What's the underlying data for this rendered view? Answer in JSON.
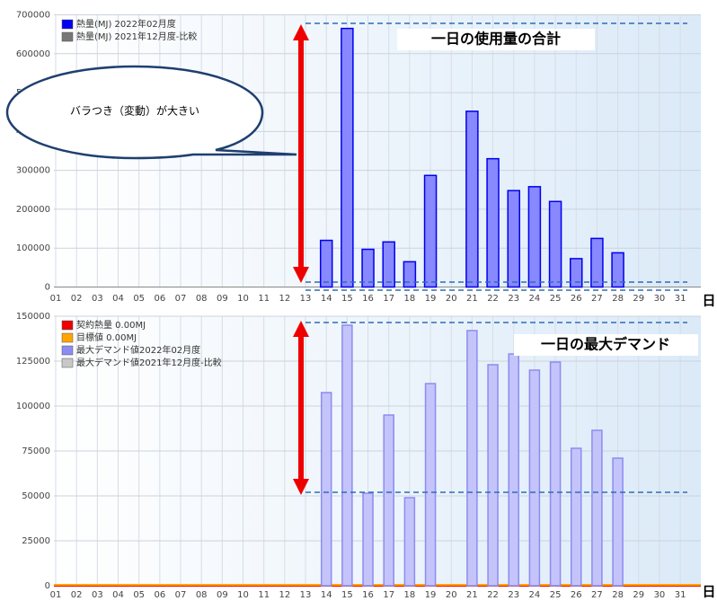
{
  "chart_data": [
    {
      "type": "bar",
      "title": "一日の使用量の合計",
      "callout": "バラつき（変動）が大きい",
      "x_label": "日",
      "categories": [
        "01",
        "02",
        "03",
        "04",
        "05",
        "06",
        "07",
        "08",
        "09",
        "10",
        "11",
        "12",
        "13",
        "14",
        "15",
        "16",
        "17",
        "18",
        "19",
        "20",
        "21",
        "22",
        "23",
        "24",
        "25",
        "26",
        "27",
        "28",
        "29",
        "30",
        "31"
      ],
      "series": [
        {
          "name": "熱量(MJ) 2022年02月度",
          "color": "#0000ee",
          "values": [
            null,
            null,
            null,
            null,
            null,
            null,
            null,
            null,
            null,
            null,
            null,
            null,
            null,
            120000,
            665000,
            97000,
            116000,
            65000,
            287000,
            null,
            452000,
            330000,
            248000,
            258000,
            220000,
            73000,
            125000,
            88000,
            null,
            null,
            null
          ]
        },
        {
          "name": "熱量(MJ) 2021年12月度-比較",
          "color": "#777777"
        }
      ],
      "ylim": [
        0,
        700000
      ],
      "yticks": [
        0,
        100000,
        200000,
        300000,
        400000,
        500000,
        600000,
        700000
      ],
      "grid": true
    },
    {
      "type": "bar",
      "title": "一日の最大デマンド",
      "x_label": "日",
      "categories": [
        "01",
        "02",
        "03",
        "04",
        "05",
        "06",
        "07",
        "08",
        "09",
        "10",
        "11",
        "12",
        "13",
        "14",
        "15",
        "16",
        "17",
        "18",
        "19",
        "20",
        "21",
        "22",
        "23",
        "24",
        "25",
        "26",
        "27",
        "28",
        "29",
        "30",
        "31"
      ],
      "series": [
        {
          "name": "契約熱量 0.00MJ",
          "color": "#ee0000"
        },
        {
          "name": "目標値 0.00MJ",
          "color": "#ffa500"
        },
        {
          "name": "最大デマンド値2022年02月度",
          "color": "#8c8cf0",
          "values": [
            null,
            null,
            null,
            null,
            null,
            null,
            null,
            null,
            null,
            null,
            null,
            null,
            null,
            107500,
            145000,
            51500,
            95000,
            49000,
            112500,
            null,
            142000,
            123000,
            129000,
            120000,
            124500,
            76500,
            86500,
            71000,
            null,
            null,
            null
          ]
        },
        {
          "name": "最大デマンド値2021年12月度-比較",
          "color": "#c8c8c8"
        }
      ],
      "ylim": [
        0,
        150000
      ],
      "yticks": [
        0,
        25000,
        50000,
        75000,
        100000,
        125000,
        150000
      ],
      "grid": true
    }
  ]
}
